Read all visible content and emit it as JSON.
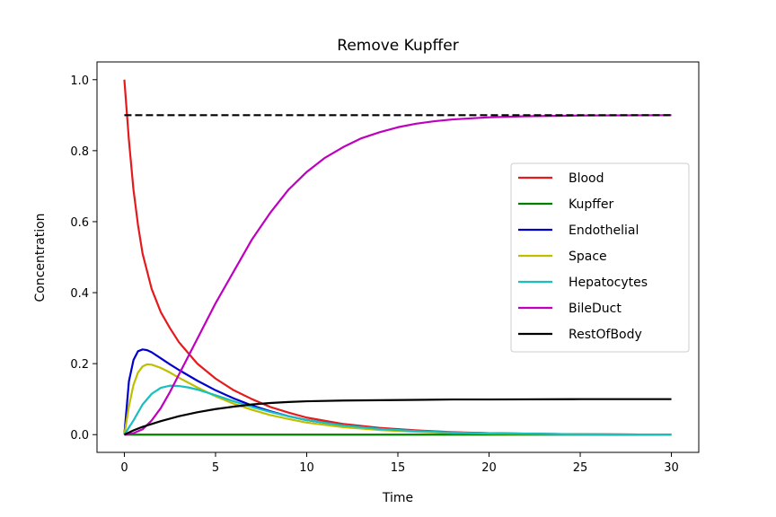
{
  "chart_data": {
    "type": "line",
    "title": "Remove Kupffer",
    "xlabel": "Time",
    "ylabel": "Concentration",
    "xlim": [
      -1.5,
      31.5
    ],
    "ylim": [
      -0.05,
      1.05
    ],
    "xticks": [
      0,
      5,
      10,
      15,
      20,
      25,
      30
    ],
    "yticks": [
      0.0,
      0.2,
      0.4,
      0.6,
      0.8,
      1.0
    ],
    "xtick_labels": [
      "0",
      "5",
      "10",
      "15",
      "20",
      "25",
      "30"
    ],
    "ytick_labels": [
      "0.0",
      "0.2",
      "0.4",
      "0.6",
      "0.8",
      "1.0"
    ],
    "grid": false,
    "legend_position": "center-right",
    "reference_line": {
      "y": 0.9,
      "x_range": [
        0,
        30
      ],
      "style": "dashed",
      "color": "#000000"
    },
    "series": [
      {
        "name": "Blood",
        "color": "#e41a1c",
        "points": [
          [
            0,
            1.0
          ],
          [
            0.25,
            0.83
          ],
          [
            0.5,
            0.69
          ],
          [
            0.75,
            0.59
          ],
          [
            1,
            0.51
          ],
          [
            1.5,
            0.41
          ],
          [
            2,
            0.345
          ],
          [
            2.5,
            0.3
          ],
          [
            3,
            0.26
          ],
          [
            4,
            0.2
          ],
          [
            5,
            0.158
          ],
          [
            6,
            0.125
          ],
          [
            7,
            0.1
          ],
          [
            8,
            0.078
          ],
          [
            9,
            0.062
          ],
          [
            10,
            0.048
          ],
          [
            12,
            0.03
          ],
          [
            14,
            0.019
          ],
          [
            16,
            0.012
          ],
          [
            18,
            0.007
          ],
          [
            20,
            0.004
          ],
          [
            22,
            0.002
          ],
          [
            25,
            0.001
          ],
          [
            30,
            0.0
          ]
        ]
      },
      {
        "name": "Kupffer",
        "color": "#008000",
        "points": [
          [
            0,
            0.0
          ],
          [
            30,
            0.0
          ]
        ]
      },
      {
        "name": "Endothelial",
        "color": "#0000cc",
        "points": [
          [
            0,
            0.0
          ],
          [
            0.25,
            0.15
          ],
          [
            0.5,
            0.21
          ],
          [
            0.75,
            0.235
          ],
          [
            1,
            0.24
          ],
          [
            1.25,
            0.238
          ],
          [
            1.5,
            0.232
          ],
          [
            2,
            0.215
          ],
          [
            2.5,
            0.198
          ],
          [
            3,
            0.182
          ],
          [
            4,
            0.152
          ],
          [
            5,
            0.125
          ],
          [
            6,
            0.102
          ],
          [
            7,
            0.082
          ],
          [
            8,
            0.066
          ],
          [
            9,
            0.052
          ],
          [
            10,
            0.041
          ],
          [
            12,
            0.026
          ],
          [
            14,
            0.016
          ],
          [
            16,
            0.01
          ],
          [
            18,
            0.006
          ],
          [
            20,
            0.004
          ],
          [
            25,
            0.001
          ],
          [
            30,
            0.0
          ]
        ]
      },
      {
        "name": "Space",
        "color": "#bfbf00",
        "points": [
          [
            0,
            0.0
          ],
          [
            0.25,
            0.08
          ],
          [
            0.5,
            0.14
          ],
          [
            0.75,
            0.175
          ],
          [
            1,
            0.192
          ],
          [
            1.25,
            0.198
          ],
          [
            1.5,
            0.197
          ],
          [
            2,
            0.188
          ],
          [
            2.5,
            0.175
          ],
          [
            3,
            0.16
          ],
          [
            4,
            0.133
          ],
          [
            5,
            0.108
          ],
          [
            6,
            0.087
          ],
          [
            7,
            0.07
          ],
          [
            8,
            0.055
          ],
          [
            9,
            0.044
          ],
          [
            10,
            0.034
          ],
          [
            12,
            0.021
          ],
          [
            14,
            0.013
          ],
          [
            16,
            0.008
          ],
          [
            18,
            0.005
          ],
          [
            20,
            0.003
          ],
          [
            25,
            0.001
          ],
          [
            30,
            0.0
          ]
        ]
      },
      {
        "name": "Hepatocytes",
        "color": "#17bfbf",
        "points": [
          [
            0,
            0.0
          ],
          [
            0.5,
            0.04
          ],
          [
            1,
            0.085
          ],
          [
            1.5,
            0.115
          ],
          [
            2,
            0.132
          ],
          [
            2.5,
            0.138
          ],
          [
            3,
            0.137
          ],
          [
            3.5,
            0.133
          ],
          [
            4,
            0.127
          ],
          [
            5,
            0.111
          ],
          [
            6,
            0.094
          ],
          [
            7,
            0.078
          ],
          [
            8,
            0.064
          ],
          [
            9,
            0.052
          ],
          [
            10,
            0.041
          ],
          [
            12,
            0.026
          ],
          [
            14,
            0.016
          ],
          [
            16,
            0.01
          ],
          [
            18,
            0.006
          ],
          [
            20,
            0.004
          ],
          [
            25,
            0.001
          ],
          [
            30,
            0.0
          ]
        ]
      },
      {
        "name": "BileDuct",
        "color": "#bf00bf",
        "points": [
          [
            0,
            0.0
          ],
          [
            0.5,
            0.004
          ],
          [
            1,
            0.015
          ],
          [
            1.5,
            0.04
          ],
          [
            2,
            0.075
          ],
          [
            2.5,
            0.12
          ],
          [
            3,
            0.17
          ],
          [
            3.5,
            0.22
          ],
          [
            4,
            0.27
          ],
          [
            5,
            0.37
          ],
          [
            6,
            0.46
          ],
          [
            7,
            0.55
          ],
          [
            8,
            0.625
          ],
          [
            9,
            0.69
          ],
          [
            10,
            0.74
          ],
          [
            11,
            0.78
          ],
          [
            12,
            0.81
          ],
          [
            13,
            0.835
          ],
          [
            14,
            0.852
          ],
          [
            15,
            0.866
          ],
          [
            16,
            0.876
          ],
          [
            17,
            0.883
          ],
          [
            18,
            0.888
          ],
          [
            20,
            0.894
          ],
          [
            22,
            0.897
          ],
          [
            25,
            0.899
          ],
          [
            30,
            0.9
          ]
        ]
      },
      {
        "name": "RestOfBody",
        "color": "#000000",
        "points": [
          [
            0,
            0.0
          ],
          [
            0.5,
            0.012
          ],
          [
            1,
            0.022
          ],
          [
            2,
            0.038
          ],
          [
            3,
            0.052
          ],
          [
            4,
            0.063
          ],
          [
            5,
            0.072
          ],
          [
            6,
            0.079
          ],
          [
            7,
            0.085
          ],
          [
            8,
            0.089
          ],
          [
            9,
            0.092
          ],
          [
            10,
            0.094
          ],
          [
            12,
            0.096
          ],
          [
            14,
            0.097
          ],
          [
            16,
            0.098
          ],
          [
            18,
            0.099
          ],
          [
            20,
            0.099
          ],
          [
            25,
            0.1
          ],
          [
            30,
            0.1
          ]
        ]
      }
    ]
  }
}
